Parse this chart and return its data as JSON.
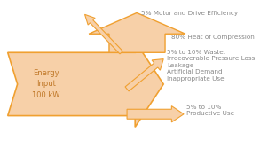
{
  "background_color": "#ffffff",
  "arrow_fill_color": "#f7d0a8",
  "arrow_edge_color": "#f0a030",
  "label_color": "#999999",
  "label_color_dark": "#888888",
  "main_label_color": "#c07828",
  "labels": {
    "main_arrow": "Energy\nInput\n100 kW",
    "motor": "5% Motor and Drive Efficiency",
    "heat": "80% Heat of Compression",
    "waste": "5% to 10% Waste:\nIrrecoverable Pressure Loss\nLeakage\nArtificial Demand\nInappropriate Use",
    "productive": "5% to 10%\nProductive Use"
  },
  "figsize": [
    3.02,
    1.67
  ],
  "dpi": 100
}
